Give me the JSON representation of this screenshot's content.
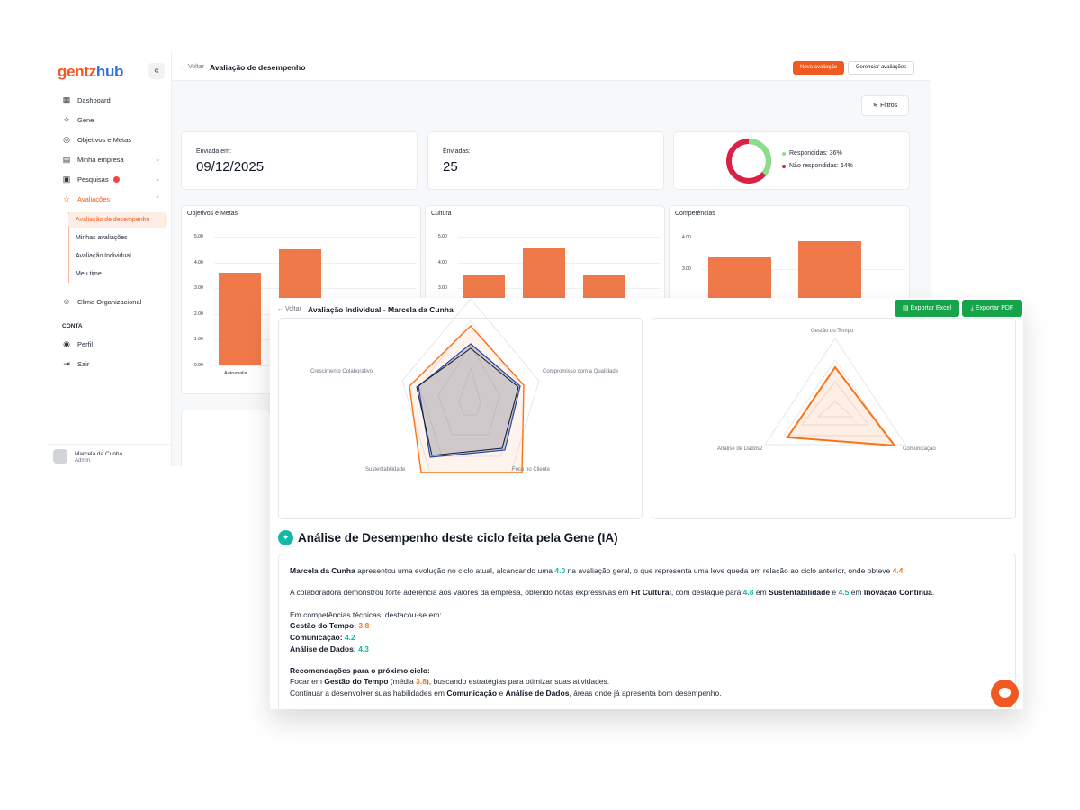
{
  "app": {
    "logo_part1": "gentz",
    "logo_part2": "hub",
    "collapse_icon": "«"
  },
  "sidebar": {
    "items": [
      {
        "label": "Dashboard",
        "icon": "grid-icon"
      },
      {
        "label": "Gene",
        "icon": "sparkle-icon"
      },
      {
        "label": "Objetivos e Metas",
        "icon": "target-icon"
      },
      {
        "label": "Minha empresa",
        "icon": "briefcase-icon"
      },
      {
        "label": "Pesquisas",
        "icon": "clipboard-icon"
      },
      {
        "label": "Avaliações",
        "icon": "star-icon"
      }
    ],
    "subitems": [
      {
        "label": "Avaliação de desempenho"
      },
      {
        "label": "Minhas avaliações"
      },
      {
        "label": "Avaliação Individual"
      },
      {
        "label": "Meu time"
      }
    ],
    "clima": "Clima Organizacional",
    "section_conta": "CONTA",
    "perfil": "Perfil",
    "sair": "Sair",
    "user_name": "Marcela da Cunha",
    "user_role": "Admin"
  },
  "header": {
    "back": "Voltar",
    "title": "Avaliação de desempenho",
    "new_button": "Nova avaliação",
    "manage_button": "Gerenciar avaliações",
    "filters_button": "Filtros"
  },
  "stats": {
    "sent_on_label": "Enviada em:",
    "sent_on_value": "09/12/2025",
    "sent_label": "Enviadas:",
    "sent_value": "25",
    "answered_label": "Respondidas: 36%",
    "not_answered_label": "Não respondidas: 64%",
    "answered_pct": 36,
    "answered_color": "#86e08a",
    "not_answered_color": "#dc1f45"
  },
  "charts": {
    "objetivos": {
      "title": "Objetivos e Metas",
      "ticks": [
        "5.00",
        "4.00",
        "3.00",
        "2.00",
        "1.00",
        "0.00"
      ],
      "xlabel": "Autoavalia...",
      "values": [
        3.6,
        4.5
      ]
    },
    "cultura": {
      "title": "Cultura",
      "ticks": [
        "5.00",
        "4.00",
        "3.00"
      ],
      "values": [
        3.5,
        4.55,
        3.5
      ]
    },
    "competencias": {
      "title": "Competências",
      "ticks": [
        "4.00",
        "3.00"
      ],
      "values": [
        3.4,
        3.9
      ]
    }
  },
  "detail": {
    "back": "Voltar",
    "title": "Avaliação Individual - Marcela da Cunha",
    "export_excel": "Exportar Excel",
    "export_pdf": "Exportar PDF",
    "radar1_labels": [
      "Crescimento Colaborativo",
      "Compromisso com a Qualidade",
      "Sustentabilidade",
      "Foco no Cliente"
    ],
    "radar2_labels": [
      "Gestão do Tempo",
      "Análise de Dados2",
      "Comunicação"
    ],
    "ai_title": "Análise de Desempenho deste ciclo feita pela Gene (IA)",
    "p1_name": "Marcela da Cunha",
    "p1_a": " apresentou uma evolução no ciclo atual, alcançando uma ",
    "p1_v1": "4.0",
    "p1_b": " na avaliação geral, o que representa uma leve queda em relação ao ciclo anterior, onde obteve ",
    "p1_v2": "4.4",
    "p1_end": ".",
    "p2_a": "A colaboradora demonstrou forte aderência aos valores da empresa, obtendo notas expressivas em ",
    "p2_fit": "Fit Cultural",
    "p2_b": ", com destaque para ",
    "p2_v1": "4.8",
    "p2_c": " em ",
    "p2_sust": "Sustentabilidade",
    "p2_d": " e ",
    "p2_v2": "4.5",
    "p2_e": " em ",
    "p2_inov": "Inovação Contínua",
    "p2_end": ".",
    "p3_intro": "Em competências técnicas, destacou-se em:",
    "skill1_label": "Gestão do Tempo",
    "skill1_value": "3.8",
    "skill2_label": "Comunicação",
    "skill2_value": "4.2",
    "skill3_label": "Análise de Dados",
    "skill3_value": "4.3",
    "colon": ": ",
    "rec_title": "Recomendações para o próximo ciclo:",
    "rec1_a": "Focar em ",
    "rec1_b": "Gestão do Tempo",
    "rec1_c": " (média ",
    "rec1_v": "3.8",
    "rec1_d": "), buscando estratégias para otimizar suas atividades.",
    "rec2_a": "Continuar a desenvolver suas habilidades em ",
    "rec2_b": "Comunicação",
    "rec2_c": " e ",
    "rec2_d": "Análise de Dados",
    "rec2_e": ", áreas onde já apresenta bom desempenho."
  },
  "colors": {
    "accent": "#f05a22",
    "green": "#16a34a",
    "teal": "#14b8a6",
    "bar": "#f0794a"
  }
}
